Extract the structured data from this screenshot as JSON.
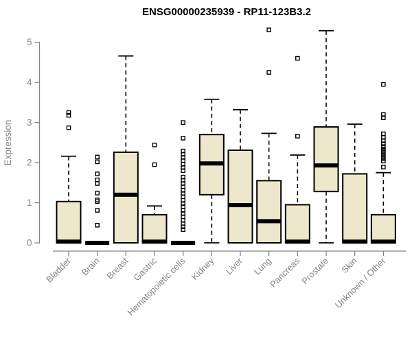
{
  "chart_data": {
    "type": "boxplot",
    "title": "ENSG00000235939 - RP11-123B3.2",
    "ylabel": "Expression",
    "xlabel": "",
    "ylim": [
      0,
      5.45
    ],
    "yticks": [
      0,
      1,
      2,
      3,
      4,
      5
    ],
    "grid": false,
    "legend": "none",
    "box_fill": "#ede7cb",
    "axis_color": "#858585",
    "line_color": "#000000",
    "categories": [
      "Bladder",
      "Brain",
      "Breast",
      "Gastric",
      "Hematopoietic cells",
      "Kidney",
      "Liver",
      "Lung",
      "Pancreas",
      "Prostate",
      "Skin",
      "Unknown / Other"
    ],
    "series": [
      {
        "label": "Bladder",
        "whislo": 0,
        "q1": 0,
        "med": 0.03,
        "q3": 1.03,
        "whishi": 2.16,
        "outliers": [
          3.25,
          3.18,
          2.87
        ]
      },
      {
        "label": "Brain",
        "whislo": 0,
        "q1": 0,
        "med": 0,
        "q3": 0,
        "whishi": 0,
        "outliers": [
          2.14,
          2.02,
          1.72,
          1.57,
          1.48,
          1.24,
          1.07,
          1.03,
          0.81,
          0.44
        ]
      },
      {
        "label": "Breast",
        "whislo": 0,
        "q1": 0,
        "med": 1.2,
        "q3": 2.26,
        "whishi": 4.66,
        "outliers": []
      },
      {
        "label": "Gastric",
        "whislo": 0,
        "q1": 0,
        "med": 0.03,
        "q3": 0.7,
        "whishi": 0.92,
        "outliers": [
          2.44,
          1.95
        ]
      },
      {
        "label": "Hematopoietic cells",
        "whislo": 0,
        "q1": 0,
        "med": 0,
        "q3": 0,
        "whishi": 0,
        "outliers": [
          3.0,
          2.61,
          2.29,
          2.21,
          2.13,
          2.05,
          1.96,
          1.88,
          1.8,
          1.64,
          1.56,
          1.48,
          1.4,
          1.31,
          1.23,
          1.15,
          1.06,
          0.98,
          0.9,
          0.81,
          0.73,
          0.65,
          0.56,
          0.48,
          0.4,
          0.33
        ]
      },
      {
        "label": "Kidney",
        "whislo": 0,
        "q1": 1.2,
        "med": 1.98,
        "q3": 2.7,
        "whishi": 3.58,
        "outliers": []
      },
      {
        "label": "Liver",
        "whislo": 0,
        "q1": 0,
        "med": 0.94,
        "q3": 2.31,
        "whishi": 3.32,
        "outliers": []
      },
      {
        "label": "Lung",
        "whislo": 0,
        "q1": 0,
        "med": 0.54,
        "q3": 1.55,
        "whishi": 2.73,
        "outliers": [
          5.31,
          4.25
        ]
      },
      {
        "label": "Pancreas",
        "whislo": 0,
        "q1": 0,
        "med": 0.03,
        "q3": 0.95,
        "whishi": 2.19,
        "outliers": [
          4.6,
          2.66
        ]
      },
      {
        "label": "Prostate",
        "whislo": 0,
        "q1": 1.28,
        "med": 1.93,
        "q3": 2.89,
        "whishi": 5.29,
        "outliers": []
      },
      {
        "label": "Skin",
        "whislo": 0,
        "q1": 0,
        "med": 0.03,
        "q3": 1.72,
        "whishi": 2.96,
        "outliers": []
      },
      {
        "label": "Unknown / Other",
        "whislo": 0,
        "q1": 0,
        "med": 0.03,
        "q3": 0.7,
        "whishi": 1.75,
        "outliers": [
          3.95,
          3.2,
          3.12,
          2.72,
          2.63,
          2.55,
          2.47,
          2.4,
          2.34,
          2.28,
          2.22,
          2.16,
          2.1,
          2.04,
          1.89
        ]
      }
    ]
  }
}
